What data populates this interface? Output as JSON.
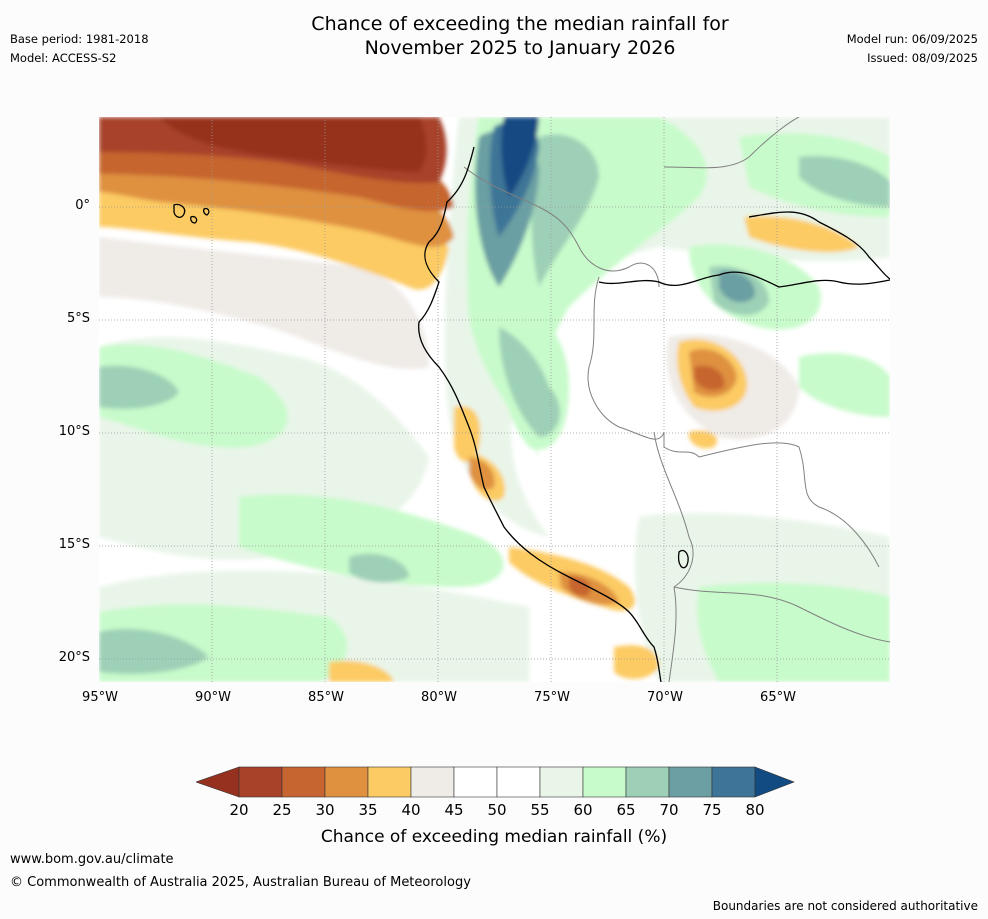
{
  "header": {
    "base_period": "Base period: 1981-2018",
    "model": "Model: ACCESS-S2",
    "title_line1": "Chance of exceeding the median rainfall for",
    "title_line2": "November 2025 to January 2026",
    "model_run": "Model run: 06/09/2025",
    "issued": "Issued: 08/09/2025"
  },
  "map": {
    "lat_labels": [
      "0°",
      "5°S",
      "10°S",
      "15°S",
      "20°S"
    ],
    "lon_labels": [
      "95°W",
      "90°W",
      "85°W",
      "80°W",
      "75°W",
      "70°W",
      "65°W"
    ],
    "colors": {
      "c20_25": "#a8432a",
      "c25_30": "#c6652f",
      "c30_35": "#df9140",
      "c35_40": "#fccb64",
      "c40_45": "#efebe7",
      "c45_55": "#ffffff",
      "c55_60": "#e9f5e9",
      "c60_65": "#c8fbcb",
      "c65_70": "#9dd0b6",
      "c70_75": "#6b9fa3",
      "c75_80": "#3e7497",
      "c_above80": "#124a82",
      "c_below20": "#96301f",
      "coast": "#000000",
      "border": "#808080"
    }
  },
  "colorbar": {
    "ticks": [
      "20",
      "25",
      "30",
      "35",
      "40",
      "45",
      "50",
      "55",
      "60",
      "65",
      "70",
      "75",
      "80"
    ],
    "title": "Chance of exceeding median rainfall (%)"
  },
  "footer": {
    "website": "www.bom.gov.au/climate",
    "copyright": "© Commonwealth of Australia 2025, Australian Bureau of Meteorology",
    "disclaimer": "Boundaries are not considered authoritative"
  }
}
